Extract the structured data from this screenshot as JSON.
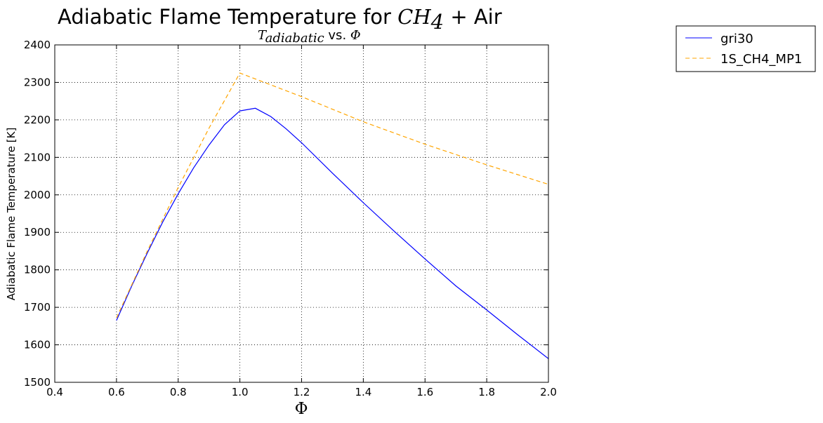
{
  "chart_data": {
    "type": "line",
    "title": {
      "prefix": "Adiabatic Flame Temperature for ",
      "math_main": "CH",
      "math_sub": "4",
      "suffix": " + Air"
    },
    "subtitle": {
      "math_main": "T",
      "math_sub": "adiabatic",
      "mid": " vs. ",
      "symbol": "Φ"
    },
    "xlabel": "Φ",
    "ylabel": "Adiabatic Flame Temperature [K]",
    "xlim": [
      0.4,
      2.0
    ],
    "ylim": [
      1500,
      2400
    ],
    "xticks": [
      0.4,
      0.6,
      0.8,
      1.0,
      1.2,
      1.4,
      1.6,
      1.8,
      2.0
    ],
    "yticks": [
      1500,
      1600,
      1700,
      1800,
      1900,
      2000,
      2100,
      2200,
      2300,
      2400
    ],
    "xtick_labels": [
      "0.4",
      "0.6",
      "0.8",
      "1.0",
      "1.2",
      "1.4",
      "1.6",
      "1.8",
      "2.0"
    ],
    "ytick_labels": [
      "1500",
      "1600",
      "1700",
      "1800",
      "1900",
      "2000",
      "2100",
      "2200",
      "2300",
      "2400"
    ],
    "grid": true,
    "legend": "outside-top-right",
    "series": [
      {
        "name": "gri30",
        "color": "#0000ff",
        "style": "solid",
        "x": [
          0.6,
          0.65,
          0.7,
          0.75,
          0.8,
          0.85,
          0.9,
          0.95,
          1.0,
          1.05,
          1.1,
          1.15,
          1.2,
          1.3,
          1.4,
          1.5,
          1.6,
          1.7,
          1.8,
          1.9,
          2.0
        ],
        "y": [
          1665,
          1758,
          1845,
          1928,
          2003,
          2072,
          2133,
          2187,
          2224,
          2231,
          2209,
          2176,
          2139,
          2058,
          1979,
          1903,
          1829,
          1757,
          1693,
          1627,
          1563
        ]
      },
      {
        "name": "1S_CH4_MP1",
        "color": "#ffa500",
        "style": "dashed",
        "x": [
          0.6,
          0.7,
          0.8,
          0.9,
          1.0,
          1.2,
          1.4,
          1.6,
          1.8,
          2.0
        ],
        "y": [
          1672,
          1850,
          2020,
          2178,
          2325,
          2262,
          2195,
          2135,
          2080,
          2028
        ]
      }
    ]
  }
}
